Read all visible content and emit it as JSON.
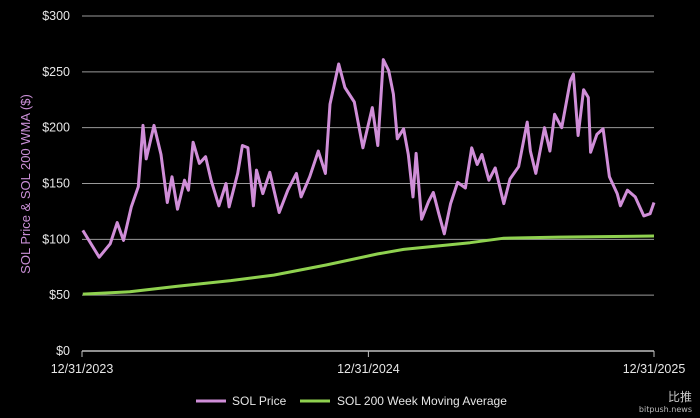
{
  "chart_data": {
    "type": "line",
    "title": "",
    "xlabel": "",
    "ylabel": "SOL Price & SOL 200 WMA ($)",
    "xlim": [
      "2023-12-31",
      "2025-12-31"
    ],
    "ylim": [
      0,
      300
    ],
    "x_ticks": [
      {
        "date": "2023-12-31",
        "label": "12/31/2023"
      },
      {
        "date": "2024-12-31",
        "label": "12/31/2024"
      },
      {
        "date": "2025-12-31",
        "label": "12/31/2025"
      }
    ],
    "y_ticks": [
      {
        "value": 0,
        "label": "$0"
      },
      {
        "value": 50,
        "label": "$50"
      },
      {
        "value": 100,
        "label": "$100"
      },
      {
        "value": 150,
        "label": "$150"
      },
      {
        "value": 200,
        "label": "$200"
      },
      {
        "value": 250,
        "label": "$250"
      },
      {
        "value": 300,
        "label": "$300"
      }
    ],
    "grid": "horizontal",
    "legend_position": "bottom",
    "series": [
      {
        "name": "SOL Price",
        "color": "#d08ed8",
        "x": [
          "2024-01-01",
          "2024-01-22",
          "2024-02-05",
          "2024-02-14",
          "2024-02-22",
          "2024-03-03",
          "2024-03-12",
          "2024-03-18",
          "2024-03-22",
          "2024-04-01",
          "2024-04-10",
          "2024-04-18",
          "2024-04-24",
          "2024-05-01",
          "2024-05-10",
          "2024-05-15",
          "2024-05-21",
          "2024-05-29",
          "2024-06-06",
          "2024-06-13",
          "2024-06-23",
          "2024-07-02",
          "2024-07-06",
          "2024-07-17",
          "2024-07-23",
          "2024-07-30",
          "2024-08-06",
          "2024-08-10",
          "2024-08-18",
          "2024-08-27",
          "2024-09-08",
          "2024-09-19",
          "2024-09-30",
          "2024-10-06",
          "2024-10-17",
          "2024-10-28",
          "2024-11-06",
          "2024-11-12",
          "2024-11-23",
          "2024-12-01",
          "2024-12-13",
          "2024-12-24",
          "2025-01-05",
          "2025-01-12",
          "2025-01-19",
          "2025-01-26",
          "2025-02-01",
          "2025-02-06",
          "2025-02-14",
          "2025-02-20",
          "2025-02-26",
          "2025-03-02",
          "2025-03-09",
          "2025-03-18",
          "2025-03-24",
          "2025-03-31",
          "2025-04-07",
          "2025-04-15",
          "2025-04-24",
          "2025-05-04",
          "2025-05-12",
          "2025-05-19",
          "2025-05-25",
          "2025-06-03",
          "2025-06-11",
          "2025-06-22",
          "2025-06-30",
          "2025-07-11",
          "2025-07-22",
          "2025-07-26",
          "2025-08-02",
          "2025-08-13",
          "2025-08-20",
          "2025-08-26",
          "2025-09-04",
          "2025-09-15",
          "2025-09-19",
          "2025-09-25",
          "2025-10-02",
          "2025-10-08",
          "2025-10-11",
          "2025-10-19",
          "2025-10-27",
          "2025-11-04",
          "2025-11-14",
          "2025-11-18",
          "2025-11-27",
          "2025-12-07",
          "2025-12-18",
          "2025-12-26",
          "2025-12-31"
        ],
        "values": [
          108,
          84,
          96,
          115,
          99,
          129,
          147,
          202,
          172,
          202,
          176,
          133,
          156,
          127,
          153,
          144,
          187,
          168,
          174,
          153,
          130,
          150,
          129,
          159,
          184,
          182,
          130,
          162,
          141,
          160,
          124,
          144,
          159,
          138,
          156,
          179,
          159,
          221,
          257,
          236,
          223,
          182,
          218,
          184,
          261,
          251,
          230,
          190,
          199,
          176,
          138,
          177,
          118,
          134,
          142,
          123,
          105,
          132,
          151,
          146,
          182,
          167,
          176,
          153,
          164,
          132,
          154,
          165,
          205,
          179,
          159,
          200,
          179,
          212,
          200,
          242,
          248,
          193,
          234,
          227,
          178,
          194,
          199,
          156,
          141,
          130,
          144,
          138,
          121,
          123,
          133
        ]
      },
      {
        "name": "SOL 200 Week Moving Average",
        "color": "#8fd14f",
        "x": [
          "2024-01-01",
          "2024-03-01",
          "2024-05-01",
          "2024-07-08",
          "2024-09-01",
          "2024-11-07",
          "2025-01-12",
          "2025-02-14",
          "2025-05-10",
          "2025-06-22",
          "2025-09-01",
          "2025-12-31"
        ],
        "values": [
          51,
          53,
          58,
          63,
          68,
          77,
          87,
          91,
          97,
          101,
          102,
          103
        ]
      }
    ]
  },
  "watermark": {
    "main": "比推",
    "sub": "bitpush.news"
  }
}
